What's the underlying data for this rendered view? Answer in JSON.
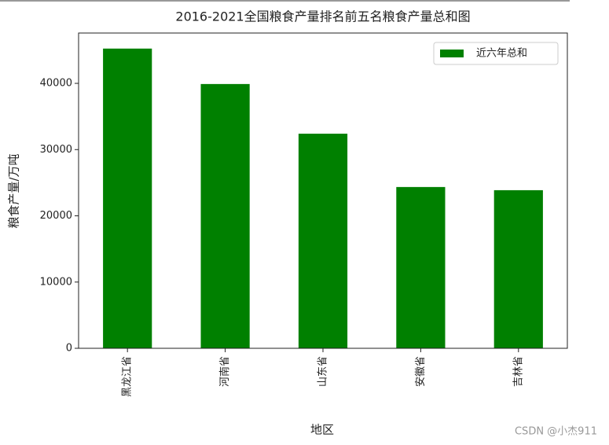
{
  "chart_data": {
    "type": "bar",
    "title": "2016-2021全国粮食产量排名前五名粮食产量总和图",
    "categories": [
      "黑龙江省",
      "河南省",
      "山东省",
      "安徽省",
      "吉林省"
    ],
    "series": [
      {
        "name": "近六年总和",
        "color": "#008000",
        "values": [
          45250,
          39900,
          32400,
          24350,
          23870
        ]
      }
    ],
    "x_label": "地区",
    "y_label": "粮食产量/万吨",
    "ylim": [
      0,
      47600
    ],
    "yticks": [
      0,
      10000,
      20000,
      30000,
      40000
    ],
    "legend": "upper right",
    "grid": false,
    "watermark": "CSDN @小杰911"
  }
}
